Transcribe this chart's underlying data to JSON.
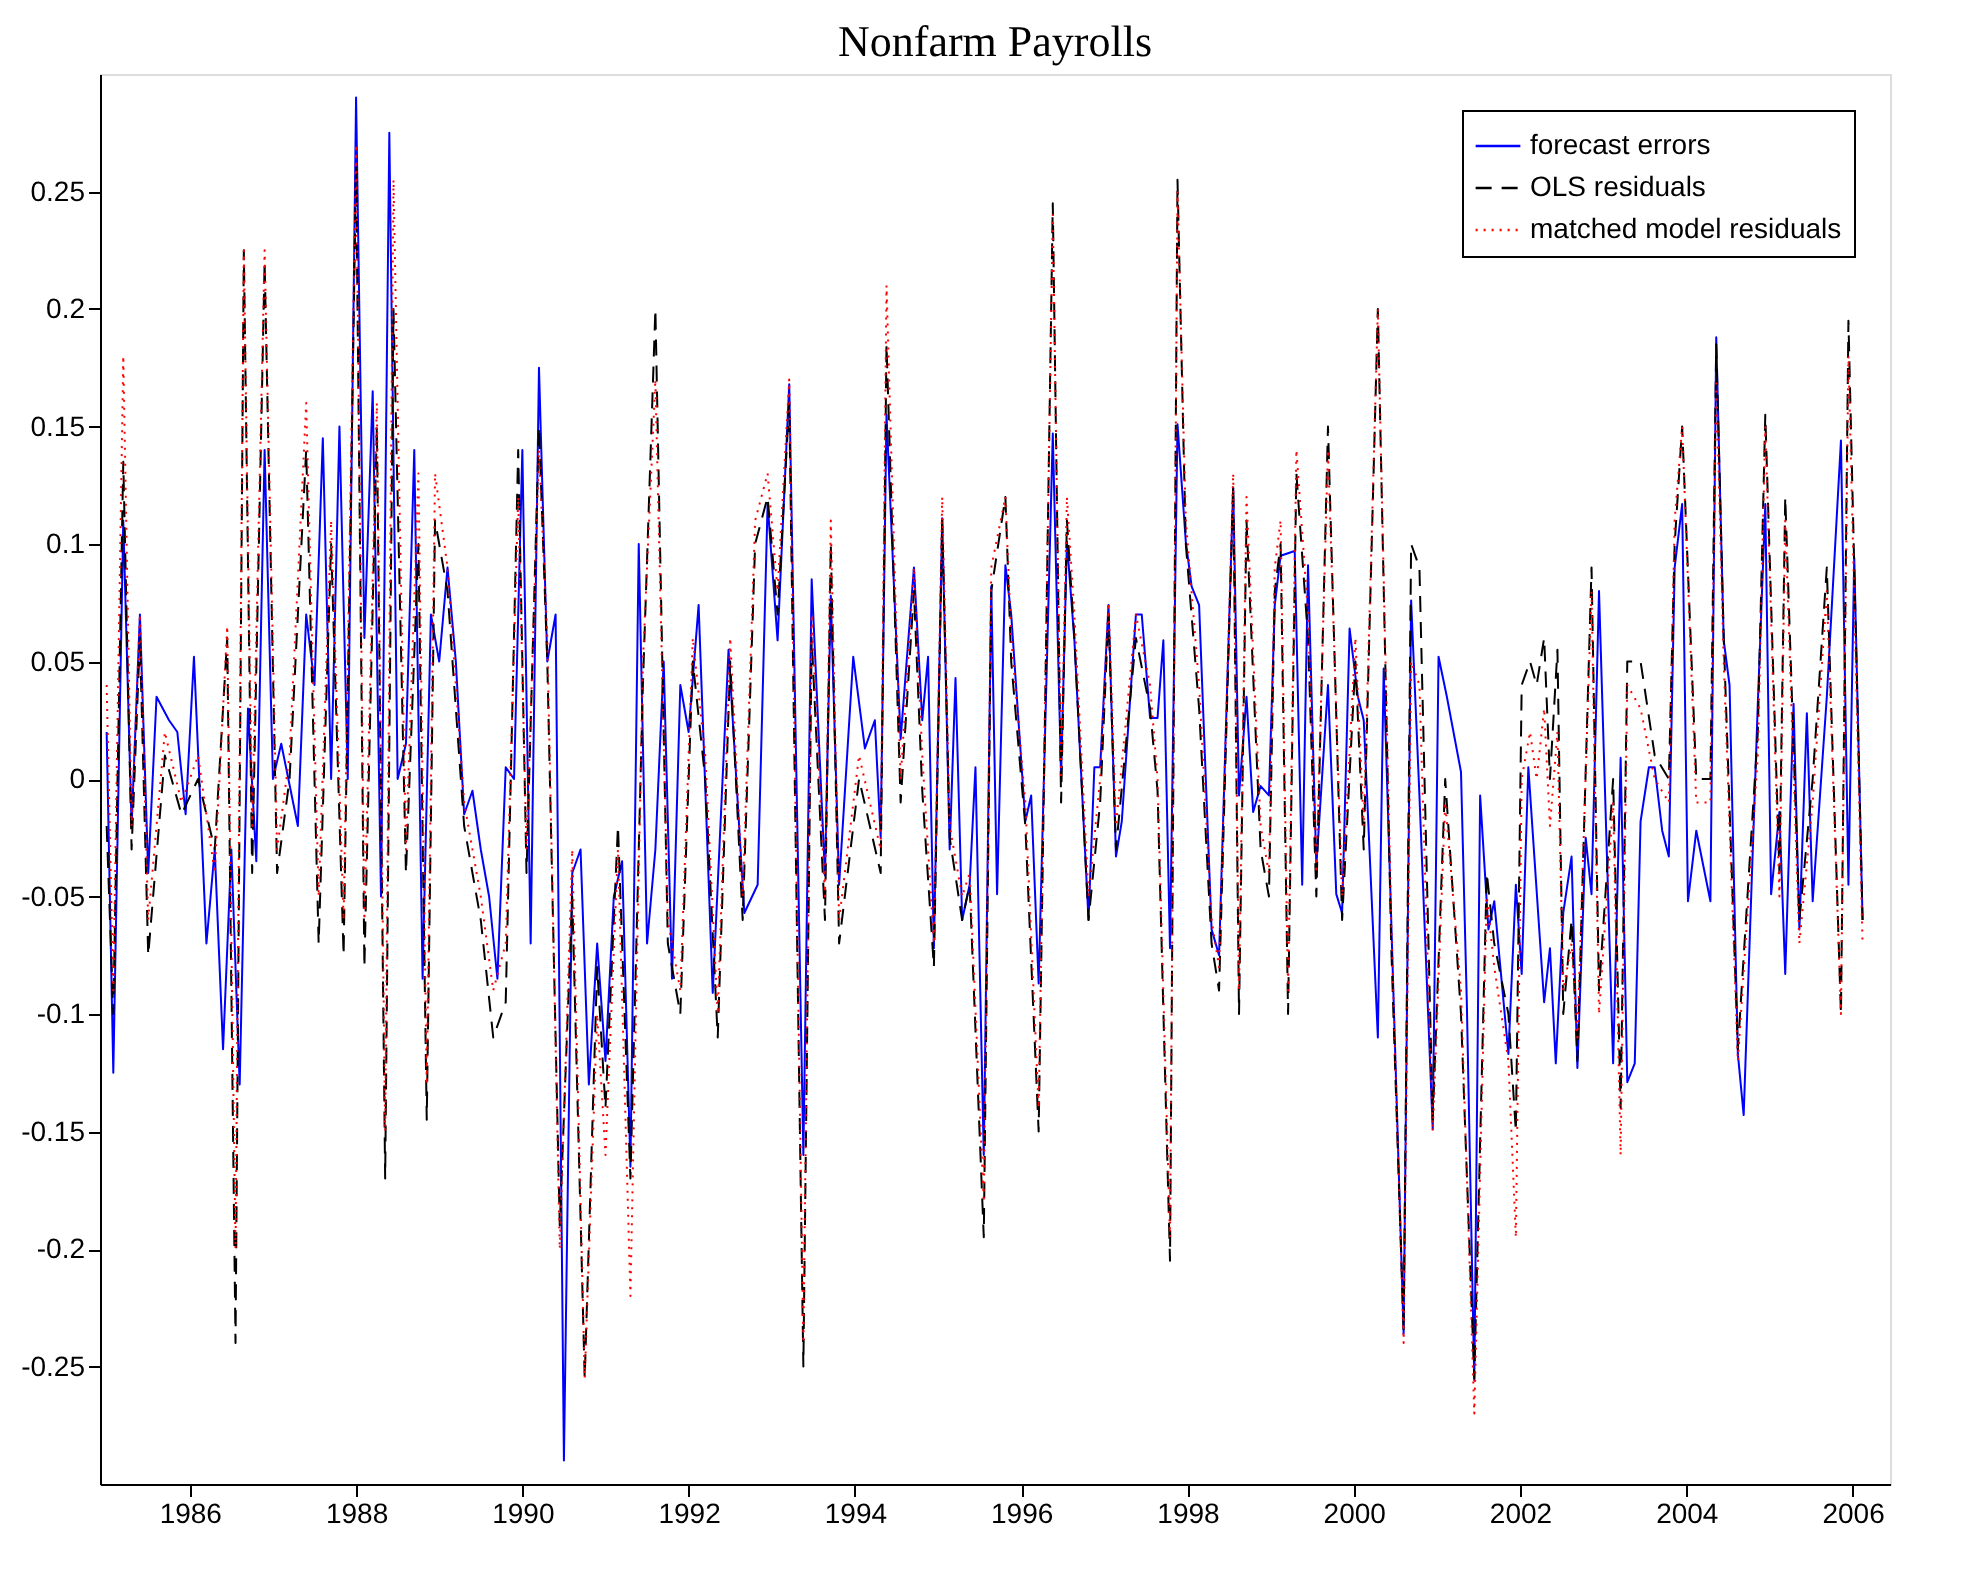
{
  "chart_data": {
    "type": "line",
    "title": "Nonfarm Payrolls",
    "xlim": [
      1984.92,
      2006.45
    ],
    "xticks": [
      1986,
      1988,
      1990,
      1992,
      1994,
      1996,
      1998,
      2000,
      2002,
      2004,
      2006
    ],
    "ylim": [
      -0.3,
      0.3
    ],
    "yticks": [
      -0.25,
      -0.2,
      -0.15,
      -0.1,
      -0.05,
      0,
      0.05,
      0.1,
      0.15,
      0.2,
      0.25
    ],
    "grid": false,
    "legend": "top right",
    "marker": "none",
    "series": [
      {
        "name": "forecast errors",
        "color": "#0000ff",
        "line_style": "solid",
        "x": [
          1985.0,
          1985.08,
          1985.2,
          1985.3,
          1985.4,
          1985.5,
          1985.6,
          1985.75,
          1985.85,
          1985.95,
          1986.05,
          1986.2,
          1986.3,
          1986.4,
          1986.5,
          1986.6,
          1986.7,
          1986.8,
          1986.9,
          1987.0,
          1987.1,
          1987.3,
          1987.4,
          1987.5,
          1987.6,
          1987.7,
          1987.8,
          1987.9,
          1988.0,
          1988.1,
          1988.2,
          1988.3,
          1988.4,
          1988.5,
          1988.6,
          1988.7,
          1988.8,
          1988.9,
          1989.0,
          1989.1,
          1989.2,
          1989.3,
          1989.4,
          1989.5,
          1989.6,
          1989.7,
          1989.8,
          1989.9,
          1990.0,
          1990.1,
          1990.2,
          1990.3,
          1990.4,
          1990.5,
          1990.6,
          1990.7,
          1990.8,
          1990.9,
          1991.0,
          1991.1,
          1991.2,
          1991.3,
          1991.4,
          1991.5,
          1991.6,
          1991.7,
          1991.8,
          1991.9,
          1992.0,
          1992.12,
          1992.29,
          1992.48,
          1992.67,
          1992.83,
          1992.95,
          1993.07,
          1993.21,
          1993.38,
          1993.48,
          1993.64,
          1993.71,
          1993.81,
          1993.98,
          1994.12,
          1994.24,
          1994.31,
          1994.38,
          1994.55,
          1994.71,
          1994.81,
          1994.88,
          1994.95,
          1995.05,
          1995.14,
          1995.21,
          1995.29,
          1995.38,
          1995.45,
          1995.55,
          1995.64,
          1995.71,
          1995.81,
          1995.88,
          1996.05,
          1996.12,
          1996.21,
          1996.38,
          1996.48,
          1996.55,
          1996.64,
          1996.81,
          1996.88,
          1996.95,
          1997.05,
          1997.14,
          1997.21,
          1997.38,
          1997.45,
          1997.55,
          1997.64,
          1997.71,
          1997.79,
          1997.88,
          1997.98,
          1998.05,
          1998.14,
          1998.29,
          1998.38,
          1998.55,
          1998.62,
          1998.71,
          1998.79,
          1998.88,
          1998.98,
          1999.05,
          1999.12,
          1999.29,
          1999.38,
          1999.45,
          1999.55,
          1999.69,
          1999.79,
          1999.86,
          1999.95,
          2000.05,
          2000.12,
          2000.29,
          2000.36,
          2000.6,
          2000.69,
          2000.79,
          2000.95,
          2001.02,
          2001.12,
          2001.29,
          2001.36,
          2001.45,
          2001.52,
          2001.62,
          2001.69,
          2001.86,
          2001.95,
          2002.02,
          2002.1,
          2002.29,
          2002.36,
          2002.43,
          2002.52,
          2002.62,
          2002.69,
          2002.79,
          2002.86,
          2002.95,
          2003.12,
          2003.21,
          2003.29,
          2003.38,
          2003.45,
          2003.55,
          2003.62,
          2003.71,
          2003.79,
          2003.86,
          2003.95,
          2004.02,
          2004.12,
          2004.29,
          2004.36,
          2004.45,
          2004.52,
          2004.62,
          2004.69,
          2004.86,
          2004.95,
          2005.02,
          2005.12,
          2005.19,
          2005.29,
          2005.36,
          2005.45,
          2005.52,
          2005.69,
          2005.86,
          2005.95,
          2006.02,
          2006.12
        ],
        "values": [
          0.02,
          -0.125,
          0.11,
          -0.02,
          0.07,
          -0.04,
          0.035,
          0.025,
          0.02,
          -0.015,
          0.052,
          -0.07,
          -0.03,
          -0.115,
          -0.03,
          -0.13,
          0.03,
          -0.035,
          0.14,
          0.0,
          0.015,
          -0.02,
          0.07,
          0.04,
          0.145,
          0.0,
          0.15,
          0.0,
          0.29,
          0.06,
          0.165,
          -0.05,
          0.275,
          0.0,
          0.015,
          0.14,
          -0.085,
          0.07,
          0.05,
          0.09,
          0.05,
          -0.015,
          -0.005,
          -0.03,
          -0.05,
          -0.085,
          0.005,
          0.0,
          0.14,
          -0.07,
          0.175,
          0.05,
          0.07,
          -0.29,
          -0.04,
          -0.03,
          -0.13,
          -0.07,
          -0.12,
          -0.05,
          -0.035,
          -0.165,
          0.1,
          -0.07,
          -0.03,
          0.05,
          -0.085,
          0.04,
          0.02,
          0.074,
          -0.091,
          0.055,
          -0.057,
          -0.045,
          0.117,
          0.059,
          0.168,
          -0.16,
          0.085,
          -0.041,
          0.078,
          -0.045,
          0.052,
          0.013,
          0.025,
          -0.025,
          0.155,
          0.017,
          0.09,
          0.025,
          0.052,
          -0.072,
          0.111,
          -0.03,
          0.043,
          -0.06,
          -0.045,
          0.005,
          -0.16,
          0.082,
          -0.049,
          0.091,
          0.07,
          -0.018,
          -0.007,
          -0.087,
          0.147,
          0.001,
          0.101,
          0.059,
          -0.06,
          0.005,
          0.005,
          0.074,
          -0.033,
          -0.018,
          0.07,
          0.07,
          0.026,
          0.026,
          0.059,
          -0.072,
          0.151,
          0.101,
          0.082,
          0.074,
          -0.064,
          -0.075,
          0.124,
          -0.007,
          0.035,
          -0.014,
          -0.003,
          -0.007,
          0.074,
          0.095,
          0.097,
          -0.045,
          0.091,
          -0.037,
          0.04,
          -0.049,
          -0.057,
          0.064,
          0.035,
          0.025,
          -0.11,
          0.047,
          -0.236,
          0.076,
          -0.007,
          -0.149,
          0.052,
          0.035,
          0.003,
          -0.095,
          -0.256,
          -0.007,
          -0.064,
          -0.052,
          -0.117,
          -0.045,
          -0.083,
          0.005,
          -0.095,
          -0.072,
          -0.121,
          -0.057,
          -0.033,
          -0.123,
          -0.025,
          -0.049,
          0.08,
          -0.121,
          0.009,
          -0.129,
          -0.121,
          -0.018,
          0.005,
          0.005,
          -0.022,
          -0.033,
          0.09,
          0.117,
          -0.052,
          -0.022,
          -0.052,
          0.188,
          0.059,
          0.04,
          -0.117,
          -0.143,
          0.032,
          0.117,
          -0.049,
          -0.014,
          -0.083,
          0.032,
          -0.064,
          0.028,
          -0.052,
          0.035,
          0.144,
          -0.045,
          0.094,
          -0.06
        ]
      },
      {
        "name": "OLS residuals",
        "color": "#000000",
        "line_style": "dashed",
        "x": [
          1985.0,
          1985.08,
          1985.2,
          1985.3,
          1985.4,
          1985.5,
          1985.7,
          1985.9,
          1986.1,
          1986.3,
          1986.45,
          1986.55,
          1986.65,
          1986.75,
          1986.9,
          1987.05,
          1987.2,
          1987.4,
          1987.55,
          1987.7,
          1987.85,
          1988.0,
          1988.1,
          1988.25,
          1988.35,
          1988.45,
          1988.6,
          1988.75,
          1988.85,
          1988.95,
          1989.1,
          1989.3,
          1989.5,
          1989.65,
          1989.8,
          1989.95,
          1990.05,
          1990.2,
          1990.3,
          1990.45,
          1990.6,
          1990.75,
          1990.9,
          1991.0,
          1991.15,
          1991.3,
          1991.45,
          1991.6,
          1991.75,
          1991.9,
          1992.05,
          1992.2,
          1992.35,
          1992.5,
          1992.65,
          1992.8,
          1992.95,
          1993.07,
          1993.21,
          1993.38,
          1993.48,
          1993.64,
          1993.71,
          1993.81,
          1994.05,
          1994.31,
          1994.38,
          1994.55,
          1994.71,
          1994.81,
          1994.95,
          1995.05,
          1995.14,
          1995.29,
          1995.38,
          1995.55,
          1995.64,
          1995.81,
          1995.88,
          1996.05,
          1996.21,
          1996.38,
          1996.48,
          1996.55,
          1996.64,
          1996.81,
          1996.95,
          1997.05,
          1997.14,
          1997.38,
          1997.55,
          1997.64,
          1997.79,
          1997.88,
          1997.98,
          1998.14,
          1998.29,
          1998.38,
          1998.55,
          1998.62,
          1998.71,
          1998.88,
          1998.98,
          1999.05,
          1999.12,
          1999.21,
          1999.31,
          1999.45,
          1999.55,
          1999.69,
          1999.86,
          2000.02,
          2000.12,
          2000.29,
          2000.45,
          2000.6,
          2000.69,
          2000.79,
          2000.95,
          2001.1,
          2001.29,
          2001.45,
          2001.6,
          2001.69,
          2001.86,
          2001.95,
          2002.02,
          2002.12,
          2002.2,
          2002.29,
          2002.36,
          2002.45,
          2002.52,
          2002.62,
          2002.69,
          2002.86,
          2002.95,
          2003.12,
          2003.21,
          2003.29,
          2003.45,
          2003.62,
          2003.79,
          2003.86,
          2003.95,
          2004.12,
          2004.29,
          2004.36,
          2004.45,
          2004.62,
          2004.86,
          2004.95,
          2005.12,
          2005.19,
          2005.36,
          2005.52,
          2005.69,
          2005.86,
          2005.95,
          2006.12
        ],
        "values": [
          -0.02,
          -0.1,
          0.135,
          -0.03,
          0.06,
          -0.075,
          0.01,
          -0.015,
          0.0,
          -0.03,
          0.06,
          -0.24,
          0.225,
          -0.04,
          0.22,
          -0.04,
          0.0,
          0.14,
          -0.07,
          0.1,
          -0.075,
          0.26,
          -0.08,
          0.15,
          -0.17,
          0.2,
          -0.04,
          0.1,
          -0.145,
          0.11,
          0.08,
          -0.02,
          -0.06,
          -0.11,
          -0.095,
          0.14,
          -0.04,
          0.15,
          0.05,
          -0.19,
          -0.05,
          -0.255,
          -0.08,
          -0.14,
          -0.02,
          -0.17,
          0.04,
          0.2,
          -0.07,
          -0.1,
          0.05,
          0.0,
          -0.11,
          0.05,
          -0.06,
          0.1,
          0.12,
          0.07,
          0.16,
          -0.25,
          0.06,
          -0.06,
          0.1,
          -0.07,
          0.0,
          -0.04,
          0.185,
          -0.01,
          0.08,
          -0.005,
          -0.08,
          0.11,
          -0.025,
          -0.06,
          -0.045,
          -0.195,
          0.08,
          0.12,
          0.05,
          -0.02,
          -0.15,
          0.245,
          -0.01,
          0.11,
          0.06,
          -0.06,
          -0.01,
          0.07,
          -0.03,
          0.06,
          0.03,
          -0.005,
          -0.205,
          0.255,
          0.1,
          0.03,
          -0.07,
          -0.09,
          0.125,
          -0.1,
          0.11,
          -0.03,
          -0.05,
          0.08,
          0.1,
          -0.1,
          0.13,
          0.06,
          -0.05,
          0.15,
          -0.06,
          0.05,
          -0.03,
          0.2,
          -0.07,
          -0.235,
          0.1,
          0.09,
          -0.145,
          0.0,
          -0.1,
          -0.255,
          -0.04,
          -0.07,
          -0.1,
          -0.15,
          0.04,
          0.05,
          0.04,
          0.06,
          0.0,
          0.055,
          -0.1,
          -0.06,
          -0.12,
          0.09,
          -0.09,
          0.0,
          -0.14,
          0.05,
          0.05,
          0.01,
          0.0,
          0.1,
          0.15,
          0.0,
          0.0,
          0.185,
          0.06,
          -0.115,
          0.02,
          0.155,
          -0.04,
          0.12,
          -0.06,
          0.0,
          0.09,
          -0.1,
          0.195,
          -0.06
        ]
      },
      {
        "name": "matched model residuals",
        "color": "#ff0000",
        "line_style": "dotted",
        "x": [
          1985.0,
          1985.08,
          1985.2,
          1985.3,
          1985.4,
          1985.5,
          1985.7,
          1985.9,
          1986.1,
          1986.3,
          1986.45,
          1986.55,
          1986.65,
          1986.75,
          1986.9,
          1987.05,
          1987.2,
          1987.4,
          1987.55,
          1987.7,
          1987.85,
          1988.0,
          1988.1,
          1988.25,
          1988.35,
          1988.45,
          1988.6,
          1988.75,
          1988.85,
          1988.95,
          1989.1,
          1989.3,
          1989.5,
          1989.65,
          1989.8,
          1989.95,
          1990.05,
          1990.2,
          1990.3,
          1990.45,
          1990.6,
          1990.75,
          1990.9,
          1991.0,
          1991.15,
          1991.3,
          1991.45,
          1991.6,
          1991.75,
          1991.9,
          1992.05,
          1992.2,
          1992.35,
          1992.5,
          1992.65,
          1992.8,
          1992.95,
          1993.07,
          1993.21,
          1993.38,
          1993.48,
          1993.64,
          1993.71,
          1993.81,
          1994.05,
          1994.31,
          1994.38,
          1994.55,
          1994.71,
          1994.81,
          1994.95,
          1995.05,
          1995.14,
          1995.29,
          1995.38,
          1995.55,
          1995.64,
          1995.81,
          1995.88,
          1996.05,
          1996.21,
          1996.38,
          1996.48,
          1996.55,
          1996.64,
          1996.81,
          1996.95,
          1997.05,
          1997.14,
          1997.38,
          1997.55,
          1997.64,
          1997.79,
          1997.88,
          1997.98,
          1998.14,
          1998.29,
          1998.38,
          1998.55,
          1998.62,
          1998.71,
          1998.88,
          1998.98,
          1999.05,
          1999.12,
          1999.21,
          1999.31,
          1999.45,
          1999.55,
          1999.69,
          1999.86,
          2000.02,
          2000.12,
          2000.29,
          2000.45,
          2000.6,
          2000.69,
          2000.79,
          2000.95,
          2001.1,
          2001.29,
          2001.45,
          2001.6,
          2001.69,
          2001.86,
          2001.95,
          2002.02,
          2002.12,
          2002.2,
          2002.29,
          2002.36,
          2002.45,
          2002.52,
          2002.62,
          2002.69,
          2002.86,
          2002.95,
          2003.12,
          2003.21,
          2003.29,
          2003.45,
          2003.62,
          2003.79,
          2003.86,
          2003.95,
          2004.12,
          2004.29,
          2004.36,
          2004.45,
          2004.62,
          2004.86,
          2004.95,
          2005.12,
          2005.19,
          2005.36,
          2005.52,
          2005.69,
          2005.86,
          2005.95,
          2006.12
        ],
        "values": [
          0.04,
          -0.09,
          0.18,
          -0.02,
          0.07,
          -0.06,
          0.02,
          -0.01,
          0.01,
          -0.04,
          0.065,
          -0.2,
          0.225,
          -0.02,
          0.225,
          -0.03,
          0.01,
          0.16,
          -0.05,
          0.11,
          -0.06,
          0.27,
          -0.06,
          0.16,
          -0.15,
          0.255,
          -0.03,
          0.13,
          -0.13,
          0.13,
          0.09,
          -0.01,
          -0.05,
          -0.09,
          -0.07,
          0.12,
          -0.03,
          0.14,
          0.06,
          -0.2,
          -0.03,
          -0.255,
          -0.1,
          -0.16,
          -0.03,
          -0.22,
          0.05,
          0.17,
          -0.06,
          -0.09,
          0.06,
          0.01,
          -0.1,
          0.06,
          -0.05,
          0.11,
          0.13,
          0.08,
          0.17,
          -0.24,
          0.07,
          -0.05,
          0.11,
          -0.06,
          0.01,
          -0.03,
          0.21,
          0.0,
          0.09,
          0.01,
          -0.07,
          0.12,
          -0.02,
          -0.05,
          -0.04,
          -0.18,
          0.09,
          0.12,
          0.06,
          -0.01,
          -0.14,
          0.24,
          0.0,
          0.12,
          0.07,
          -0.05,
          0.0,
          0.075,
          -0.02,
          0.07,
          0.04,
          0.0,
          -0.195,
          0.25,
          0.11,
          0.04,
          -0.06,
          -0.08,
          0.13,
          -0.09,
          0.12,
          -0.02,
          -0.04,
          0.09,
          0.11,
          -0.09,
          0.14,
          0.07,
          -0.04,
          0.14,
          -0.05,
          0.06,
          -0.02,
          0.2,
          -0.06,
          -0.24,
          0.05,
          0.04,
          -0.15,
          -0.01,
          -0.09,
          -0.27,
          -0.05,
          -0.08,
          -0.12,
          -0.195,
          0.0,
          0.02,
          0.0,
          0.03,
          -0.02,
          0.02,
          -0.09,
          -0.07,
          -0.11,
          0.08,
          -0.1,
          -0.01,
          -0.16,
          0.04,
          0.03,
          0.0,
          -0.01,
          0.11,
          0.15,
          -0.01,
          -0.01,
          0.17,
          0.05,
          -0.12,
          0.01,
          0.15,
          -0.05,
          0.11,
          -0.07,
          -0.01,
          0.08,
          -0.1,
          0.18,
          -0.07
        ]
      }
    ]
  }
}
